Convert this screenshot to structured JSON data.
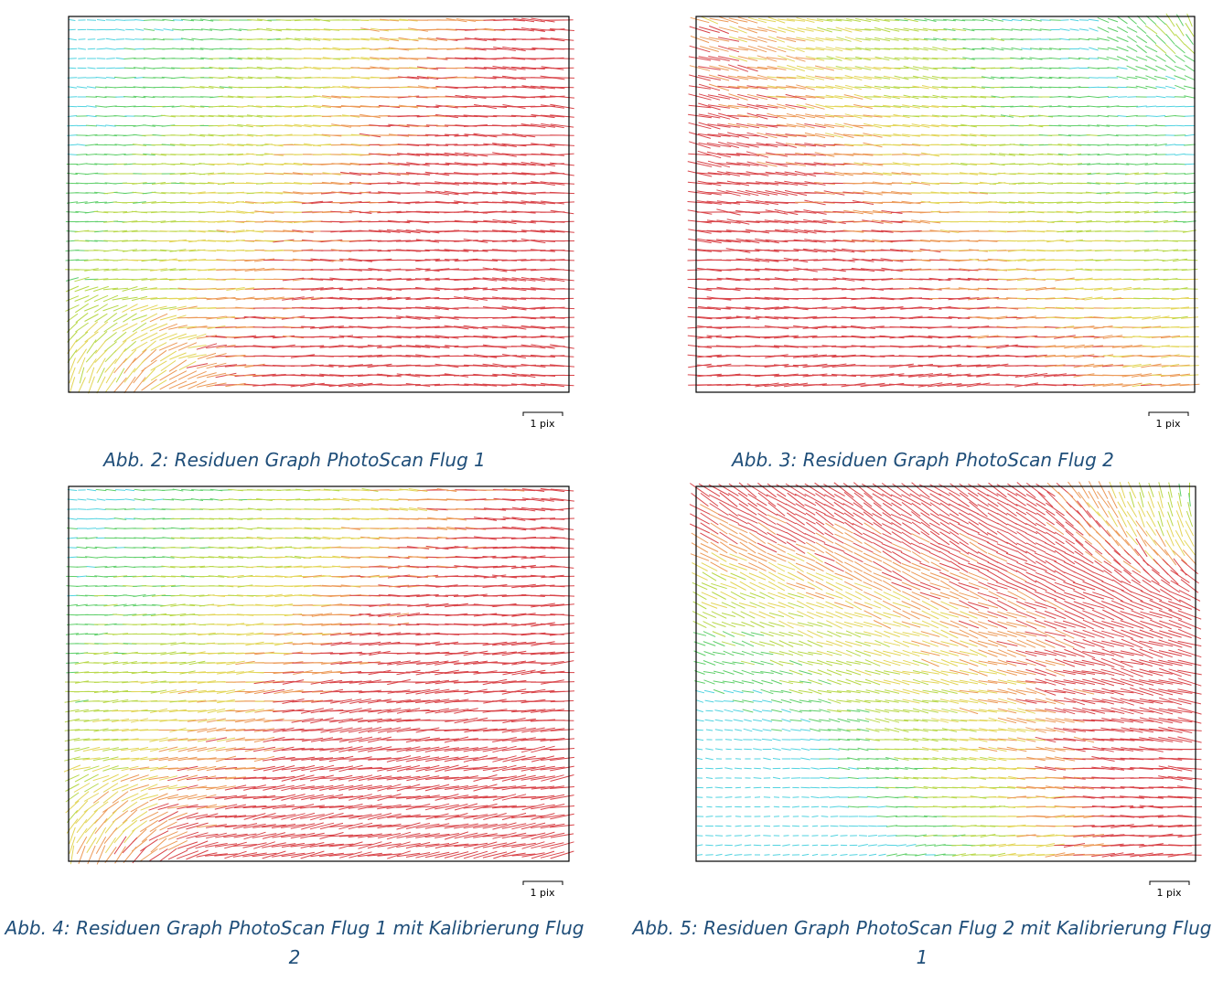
{
  "figures": [
    {
      "scale_label": "1 pix",
      "caption": "Abb. 2: Residuen Graph PhotoScan Flug 1"
    },
    {
      "scale_label": "1 pix",
      "caption": "Abb. 3: Residuen Graph PhotoScan Flug 2"
    },
    {
      "scale_label": "1 pix",
      "caption": "Abb. 4: Residuen Graph PhotoScan Flug 1 mit Kalibrierung Flug 2"
    },
    {
      "scale_label": "1 pix",
      "caption": "Abb. 5: Residuen Graph PhotoScan Flug 2 mit Kalibrierung Flug 1"
    }
  ]
}
